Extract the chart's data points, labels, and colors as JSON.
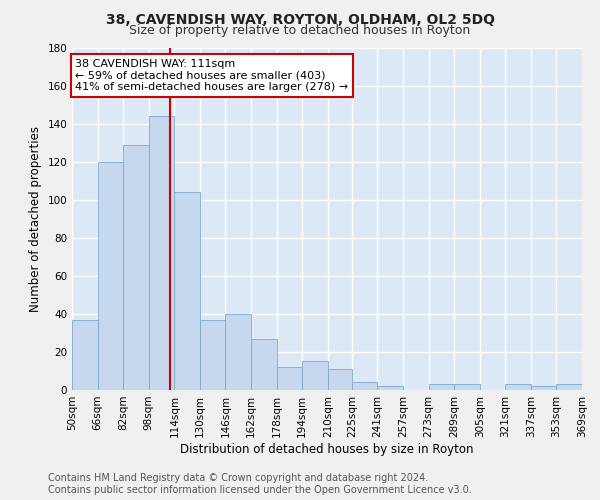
{
  "title": "38, CAVENDISH WAY, ROYTON, OLDHAM, OL2 5DQ",
  "subtitle": "Size of property relative to detached houses in Royton",
  "xlabel": "Distribution of detached houses by size in Royton",
  "ylabel": "Number of detached properties",
  "bar_color": "#c5d8ed",
  "bar_edge_color": "#7baad0",
  "background_color": "#dce8f5",
  "grid_color": "#ffffff",
  "fig_background": "#f0f0f0",
  "bins": [
    50,
    66,
    82,
    98,
    114,
    130,
    146,
    162,
    178,
    194,
    210,
    225,
    241,
    257,
    273,
    289,
    305,
    321,
    337,
    353,
    369
  ],
  "bin_labels": [
    "50sqm",
    "66sqm",
    "82sqm",
    "98sqm",
    "114sqm",
    "130sqm",
    "146sqm",
    "162sqm",
    "178sqm",
    "194sqm",
    "210sqm",
    "225sqm",
    "241sqm",
    "257sqm",
    "273sqm",
    "289sqm",
    "305sqm",
    "321sqm",
    "337sqm",
    "353sqm",
    "369sqm"
  ],
  "counts": [
    37,
    120,
    129,
    144,
    104,
    37,
    40,
    27,
    12,
    15,
    11,
    4,
    2,
    0,
    3,
    3,
    0,
    3,
    2,
    3
  ],
  "red_line_x": 111,
  "annotation_line1": "38 CAVENDISH WAY: 111sqm",
  "annotation_line2": "← 59% of detached houses are smaller (403)",
  "annotation_line3": "41% of semi-detached houses are larger (278) →",
  "annotation_box_color": "#ffffff",
  "annotation_box_edge": "#cc0000",
  "red_line_color": "#cc0000",
  "ylim": [
    0,
    180
  ],
  "yticks": [
    0,
    20,
    40,
    60,
    80,
    100,
    120,
    140,
    160,
    180
  ],
  "footer_line1": "Contains HM Land Registry data © Crown copyright and database right 2024.",
  "footer_line2": "Contains public sector information licensed under the Open Government Licence v3.0.",
  "title_fontsize": 10,
  "subtitle_fontsize": 9,
  "annotation_fontsize": 8,
  "axis_label_fontsize": 8.5,
  "tick_fontsize": 7.5,
  "footer_fontsize": 7
}
